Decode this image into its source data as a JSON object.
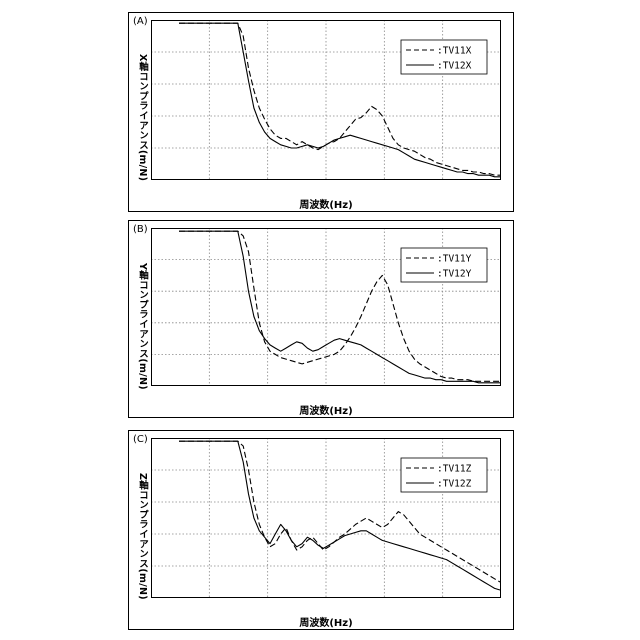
{
  "chart_data": [
    {
      "panel": "(A)",
      "type": "line",
      "xlabel": "周波数(Hz)",
      "ylabel": "X軸コンプライアンス(m/N)",
      "legend_position": "top-right",
      "series": [
        {
          "name": ":TV11X",
          "style": "dashed",
          "y": [
            98,
            98,
            98,
            98,
            98,
            98,
            98,
            98,
            98,
            98,
            98,
            98,
            90,
            70,
            56,
            45,
            38,
            32,
            28,
            26,
            26,
            24,
            22,
            24,
            22,
            20,
            19,
            21,
            23,
            24,
            26,
            30,
            34,
            38,
            39,
            42,
            46,
            44,
            40,
            33,
            26,
            22,
            20,
            19,
            18,
            16,
            14,
            13,
            11,
            10,
            9,
            8,
            7,
            6,
            6,
            5,
            5,
            4,
            4,
            3,
            3
          ]
        },
        {
          "name": ":TV12X",
          "style": "solid",
          "y": [
            98,
            98,
            98,
            98,
            98,
            98,
            98,
            98,
            98,
            98,
            98,
            98,
            80,
            62,
            45,
            36,
            30,
            26,
            24,
            22,
            21,
            20,
            20,
            21,
            22,
            21,
            20,
            21,
            23,
            25,
            26,
            27,
            28,
            27,
            26,
            25,
            24,
            23,
            22,
            21,
            20,
            19,
            17,
            15,
            13,
            12,
            11,
            10,
            9,
            8,
            7,
            6,
            5,
            5,
            4,
            4,
            3,
            3,
            3,
            2,
            2
          ]
        }
      ]
    },
    {
      "panel": "(B)",
      "type": "line",
      "xlabel": "周波数(Hz)",
      "ylabel": "Y軸コンプライアンス(m/N)",
      "legend_position": "top-right",
      "series": [
        {
          "name": ":TV11Y",
          "style": "dashed",
          "y": [
            98,
            98,
            98,
            98,
            98,
            98,
            98,
            98,
            98,
            98,
            98,
            98,
            95,
            85,
            62,
            40,
            28,
            22,
            20,
            18,
            17,
            16,
            15,
            14,
            15,
            16,
            17,
            18,
            19,
            20,
            22,
            26,
            31,
            37,
            44,
            52,
            60,
            66,
            70,
            64,
            52,
            40,
            30,
            22,
            17,
            14,
            12,
            10,
            8,
            6,
            5,
            5,
            4,
            4,
            4,
            3,
            3,
            3,
            3,
            3,
            3
          ]
        },
        {
          "name": ":TV12Y",
          "style": "solid",
          "y": [
            98,
            98,
            98,
            98,
            98,
            98,
            98,
            98,
            98,
            98,
            98,
            98,
            82,
            60,
            44,
            35,
            30,
            26,
            24,
            22,
            24,
            26,
            28,
            27,
            24,
            22,
            23,
            25,
            27,
            29,
            30,
            29,
            28,
            27,
            26,
            24,
            22,
            20,
            18,
            16,
            14,
            12,
            10,
            8,
            7,
            6,
            5,
            5,
            4,
            4,
            3,
            3,
            3,
            3,
            3,
            3,
            2,
            2,
            2,
            2,
            2
          ]
        }
      ]
    },
    {
      "panel": "(C)",
      "type": "line",
      "xlabel": "周波数(Hz)",
      "ylabel": "Z軸コンプライアンス(m/N)",
      "legend_position": "top-right",
      "series": [
        {
          "name": ":TV11Z",
          "style": "dashed",
          "y": [
            98,
            98,
            98,
            98,
            98,
            98,
            98,
            98,
            98,
            98,
            98,
            98,
            95,
            80,
            60,
            46,
            38,
            32,
            34,
            40,
            44,
            36,
            30,
            32,
            36,
            38,
            34,
            30,
            32,
            35,
            38,
            40,
            43,
            46,
            48,
            50,
            48,
            46,
            44,
            46,
            50,
            54,
            52,
            48,
            44,
            40,
            38,
            36,
            34,
            32,
            30,
            28,
            26,
            24,
            22,
            20,
            18,
            16,
            14,
            12,
            10
          ]
        },
        {
          "name": ":TV12Z",
          "style": "solid",
          "y": [
            98,
            98,
            98,
            98,
            98,
            98,
            98,
            98,
            98,
            98,
            98,
            98,
            85,
            65,
            50,
            42,
            38,
            34,
            40,
            46,
            42,
            36,
            32,
            34,
            38,
            36,
            33,
            31,
            33,
            35,
            37,
            39,
            40,
            41,
            42,
            42,
            40,
            38,
            36,
            35,
            34,
            33,
            32,
            31,
            30,
            29,
            28,
            27,
            26,
            25,
            24,
            22,
            20,
            18,
            16,
            14,
            12,
            10,
            8,
            6,
            5
          ]
        }
      ]
    }
  ]
}
